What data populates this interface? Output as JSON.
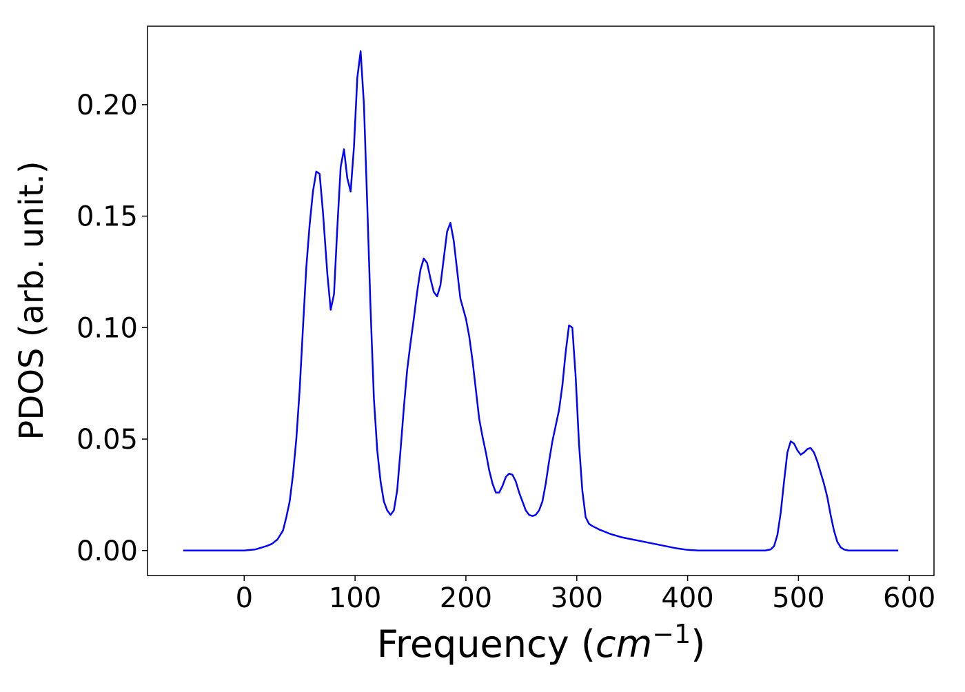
{
  "chart_data": {
    "type": "line",
    "x_label_parts": [
      "Frequency (",
      "cm",
      "−1",
      ")"
    ],
    "y_label": "PDOS (arb. unit.)",
    "x": [
      -55,
      0,
      10,
      20,
      25,
      30,
      35,
      38,
      41,
      44,
      47,
      50,
      53,
      56,
      59,
      62,
      65,
      68,
      71,
      75,
      78,
      81,
      84,
      87,
      90,
      93,
      96,
      99,
      102,
      105,
      108,
      111,
      114,
      117,
      120,
      123,
      126,
      129,
      132,
      135,
      138,
      141,
      144,
      147,
      150,
      153,
      156,
      159,
      162,
      165,
      168,
      171,
      174,
      177,
      180,
      183,
      186,
      189,
      192,
      195,
      200,
      203,
      206,
      209,
      212,
      215,
      218,
      221,
      224,
      227,
      230,
      233,
      236,
      239,
      242,
      245,
      248,
      251,
      254,
      257,
      260,
      263,
      266,
      269,
      272,
      275,
      278,
      281,
      284,
      287,
      290,
      293,
      296,
      299,
      302,
      305,
      308,
      311,
      314,
      320,
      330,
      340,
      350,
      360,
      370,
      380,
      390,
      400,
      410,
      470,
      475,
      478,
      481,
      484,
      487,
      490,
      493,
      496,
      499,
      502,
      505,
      508,
      511,
      514,
      517,
      520,
      523,
      526,
      529,
      532,
      535,
      538,
      541,
      545,
      590
    ],
    "series": [
      {
        "name": "PDOS",
        "color": "#0000ff",
        "values": [
          0,
          0,
          0.0005,
          0.002,
          0.003,
          0.005,
          0.009,
          0.015,
          0.022,
          0.034,
          0.05,
          0.072,
          0.1,
          0.127,
          0.146,
          0.161,
          0.17,
          0.169,
          0.152,
          0.124,
          0.108,
          0.115,
          0.145,
          0.172,
          0.18,
          0.167,
          0.161,
          0.181,
          0.212,
          0.224,
          0.2,
          0.155,
          0.108,
          0.068,
          0.045,
          0.031,
          0.022,
          0.018,
          0.016,
          0.018,
          0.027,
          0.045,
          0.064,
          0.081,
          0.093,
          0.104,
          0.116,
          0.126,
          0.131,
          0.129,
          0.122,
          0.116,
          0.114,
          0.119,
          0.131,
          0.143,
          0.147,
          0.139,
          0.126,
          0.113,
          0.104,
          0.096,
          0.085,
          0.072,
          0.059,
          0.051,
          0.044,
          0.036,
          0.03,
          0.026,
          0.026,
          0.029,
          0.033,
          0.0345,
          0.034,
          0.031,
          0.026,
          0.022,
          0.018,
          0.016,
          0.0155,
          0.016,
          0.018,
          0.022,
          0.03,
          0.04,
          0.049,
          0.056,
          0.063,
          0.074,
          0.089,
          0.101,
          0.1,
          0.078,
          0.048,
          0.027,
          0.015,
          0.012,
          0.011,
          0.0095,
          0.0075,
          0.006,
          0.005,
          0.004,
          0.003,
          0.002,
          0.001,
          0.0003,
          0,
          0,
          0.0005,
          0.002,
          0.007,
          0.017,
          0.031,
          0.044,
          0.049,
          0.048,
          0.045,
          0.043,
          0.044,
          0.0455,
          0.046,
          0.044,
          0.04,
          0.035,
          0.03,
          0.024,
          0.016,
          0.009,
          0.004,
          0.0015,
          0.0005,
          0,
          0
        ]
      }
    ],
    "xlim": [
      -87.25,
      622.25
    ],
    "ylim": [
      -0.0112,
      0.2352
    ],
    "xticks": [
      0,
      100,
      200,
      300,
      400,
      500,
      600
    ],
    "yticks": [
      {
        "value": 0,
        "label": "0.00"
      },
      {
        "value": 0.05,
        "label": "0.05"
      },
      {
        "value": 0.1,
        "label": "0.10"
      },
      {
        "value": 0.15,
        "label": "0.15"
      },
      {
        "value": 0.2,
        "label": "0.20"
      }
    ]
  }
}
